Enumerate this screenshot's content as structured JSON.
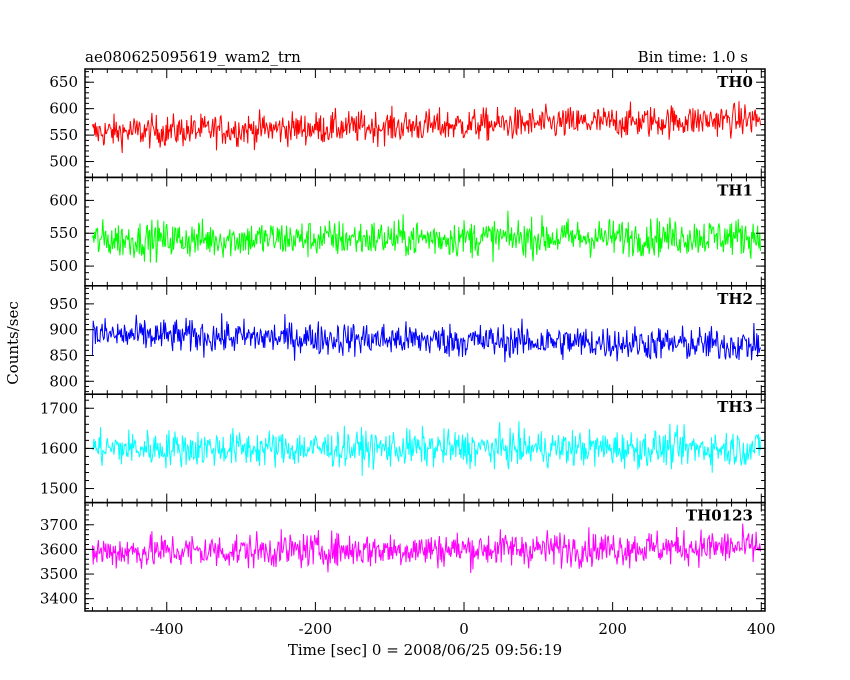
{
  "header": {
    "title": "ae080625095619_wam2_trn",
    "bin_time": "Bin time: 1.0 s"
  },
  "axes": {
    "ylabel": "Counts/sec",
    "xlabel": "Time [sec] 0 = 2008/06/25 09:56:19"
  },
  "chart_data": {
    "type": "line",
    "title": "ae080625095619_wam2_trn",
    "xlabel": "Time [sec] 0 = 2008/06/25 09:56:19",
    "ylabel": "Counts/sec",
    "xlim": [
      -510,
      405
    ],
    "x_ticks": [
      -400,
      -200,
      0,
      200,
      400
    ],
    "x_range_data": [
      -500,
      399
    ],
    "bin_time_s": 1.0,
    "panels": [
      {
        "name": "TH0",
        "color": "#ff0000",
        "ylim": [
          470,
          675
        ],
        "yticks": [
          500,
          550,
          600,
          650
        ],
        "mean_start": 555,
        "mean_end": 580,
        "amplitude": 28
      },
      {
        "name": "TH1",
        "color": "#00ff00",
        "ylim": [
          470,
          635
        ],
        "yticks": [
          500,
          550,
          600
        ],
        "mean_start": 540,
        "mean_end": 545,
        "amplitude": 26
      },
      {
        "name": "TH2",
        "color": "#0000ff",
        "ylim": [
          775,
          985
        ],
        "yticks": [
          800,
          850,
          900,
          950
        ],
        "mean_start": 890,
        "mean_end": 870,
        "amplitude": 30
      },
      {
        "name": "TH3",
        "color": "#00ffff",
        "ylim": [
          1465,
          1735
        ],
        "yticks": [
          1500,
          1600,
          1700
        ],
        "mean_start": 1600,
        "mean_end": 1600,
        "amplitude": 42
      },
      {
        "name": "TH0123",
        "color": "#ff00ff",
        "ylim": [
          3350,
          3790
        ],
        "yticks": [
          3400,
          3500,
          3600,
          3700
        ],
        "mean_start": 3590,
        "mean_end": 3610,
        "amplitude": 65
      }
    ]
  }
}
